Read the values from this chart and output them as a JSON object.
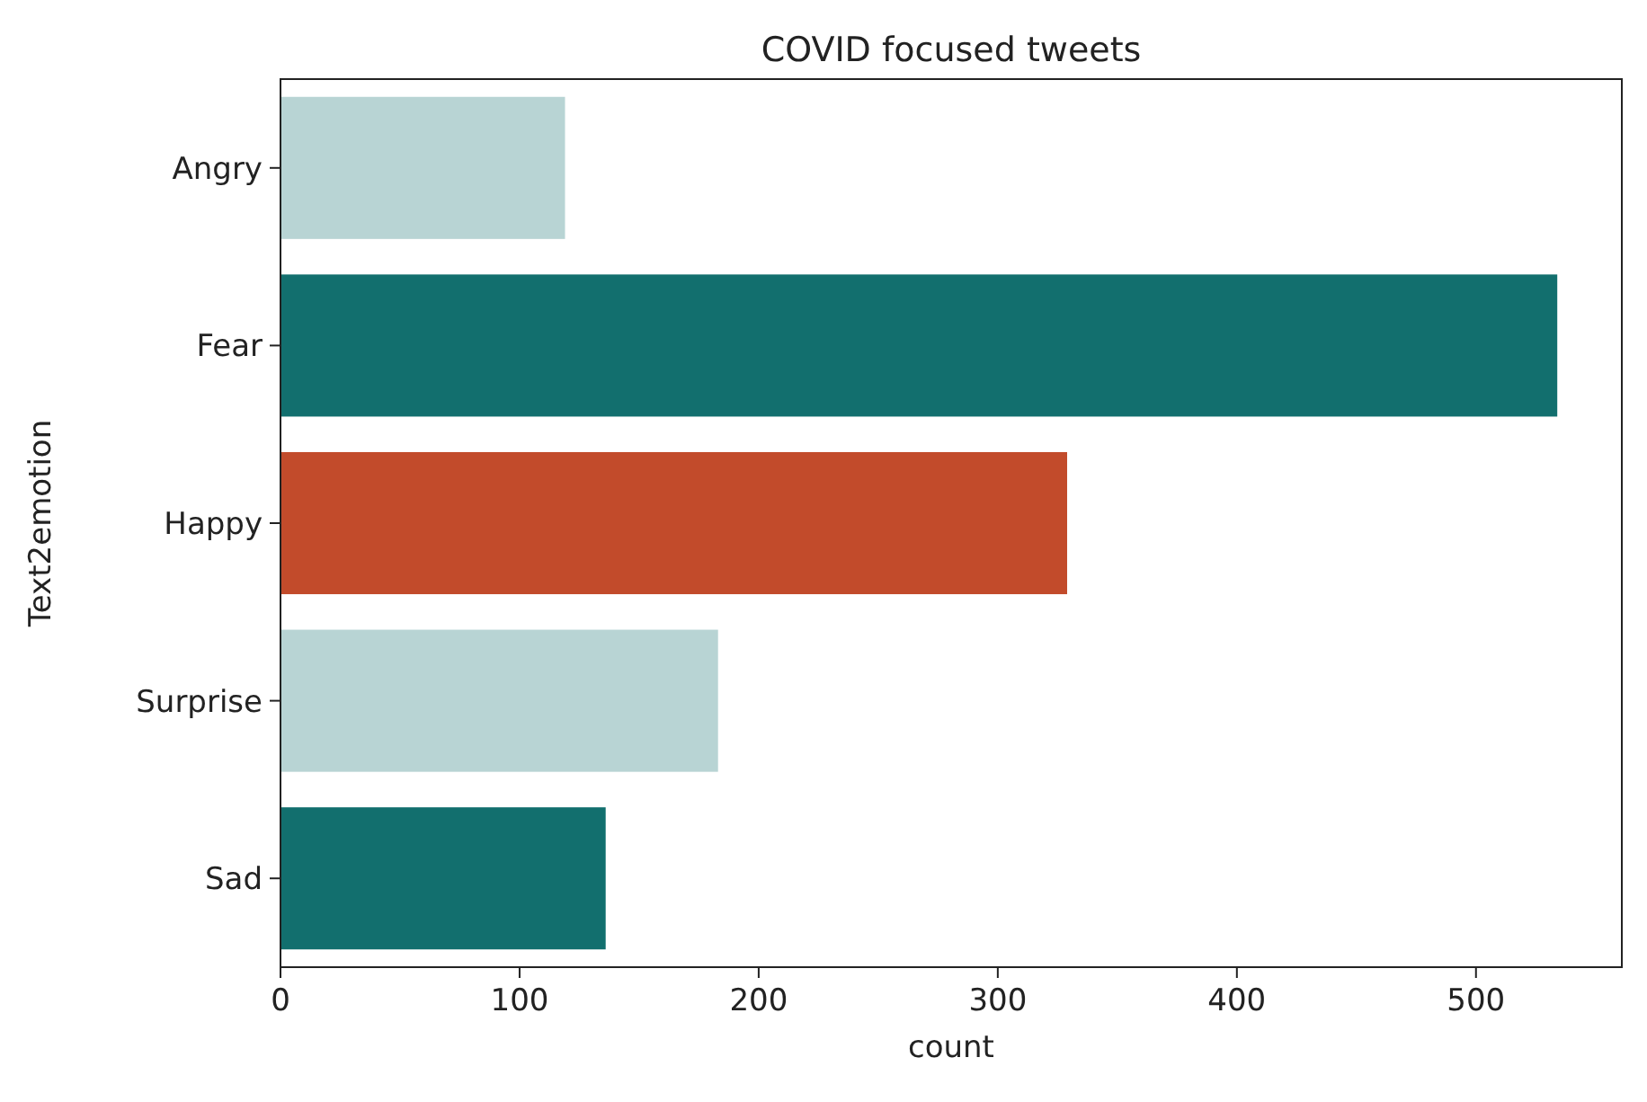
{
  "chart_data": {
    "type": "bar",
    "orientation": "horizontal",
    "title": "COVID focused tweets",
    "xlabel": "count",
    "ylabel": "Text2emotion",
    "categories": [
      "Angry",
      "Fear",
      "Happy",
      "Surprise",
      "Sad"
    ],
    "values": [
      119,
      534,
      329,
      183,
      136
    ],
    "colors": [
      "#b8d4d4",
      "#126f6e",
      "#c24b2b",
      "#b8d4d4",
      "#126f6e"
    ],
    "xlim": [
      0,
      561
    ],
    "xticks": [
      0,
      100,
      200,
      300,
      400,
      500
    ],
    "grid": false
  }
}
